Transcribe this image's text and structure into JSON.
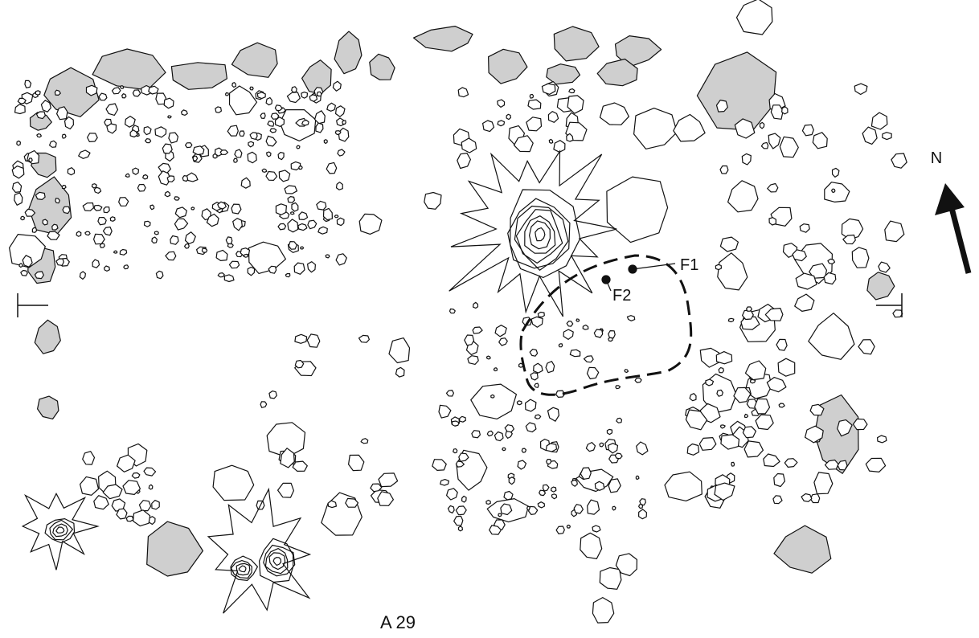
{
  "labels": {
    "north": "N",
    "f1": "F1",
    "f2": "F2",
    "caption": "A 29"
  }
}
